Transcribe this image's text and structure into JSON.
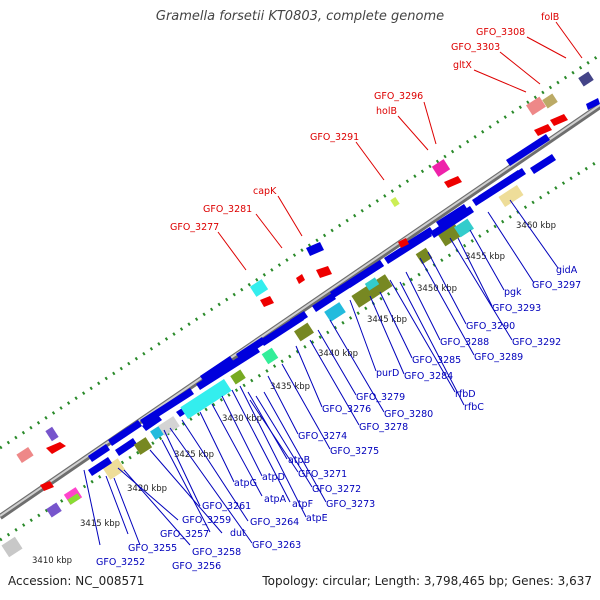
{
  "title": "Gramella forsetii KT0803, complete genome",
  "footer": {
    "accession": "Accession: NC_008571",
    "summary": "Topology: circular; Length: 3,798,465 bp; Genes: 3,637"
  },
  "colors": {
    "forward_label": "#dd0000",
    "reverse_label": "#0000bb",
    "backbone": "#8c8c8c",
    "dots": "#2a8a2a"
  },
  "ticks": [
    "3410 kbp",
    "3415 kbp",
    "3420 kbp",
    "3425 kbp",
    "3430 kbp",
    "3435 kbp",
    "3440 kbp",
    "3445 kbp",
    "3450 kbp",
    "3455 kbp",
    "3460 kbp"
  ],
  "forward_genes": [
    "GFO_3277",
    "GFO_3281",
    "capK",
    "GFO_3291",
    "holB",
    "GFO_3296",
    "gltX",
    "GFO_3303",
    "GFO_3308",
    "folB"
  ],
  "reverse_genes": [
    "GFO_3252",
    "GFO_3255",
    "GFO_3256",
    "GFO_3257",
    "GFO_3258",
    "GFO_3259",
    "dut",
    "GFO_3261",
    "GFO_3263",
    "GFO_3264",
    "atpG",
    "atpA",
    "atpD",
    "atpF",
    "atpE",
    "atpB",
    "GFO_3271",
    "GFO_3272",
    "GFO_3273",
    "GFO_3274",
    "GFO_3275",
    "GFO_3276",
    "GFO_3278",
    "GFO_3279",
    "GFO_3280",
    "purD",
    "GFO_3284",
    "GFO_3285",
    "rfbD",
    "rfbC",
    "GFO_3288",
    "GFO_3289",
    "GFO_3290",
    "GFO_3292",
    "GFO_3293",
    "pgk",
    "GFO_3297",
    "gidA"
  ]
}
